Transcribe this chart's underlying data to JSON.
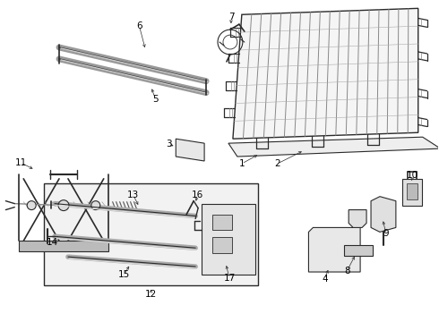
{
  "bg_color": "#ffffff",
  "line_color": "#2a2a2a",
  "label_color": "#000000",
  "fig_width": 4.9,
  "fig_height": 3.6,
  "dpi": 100
}
